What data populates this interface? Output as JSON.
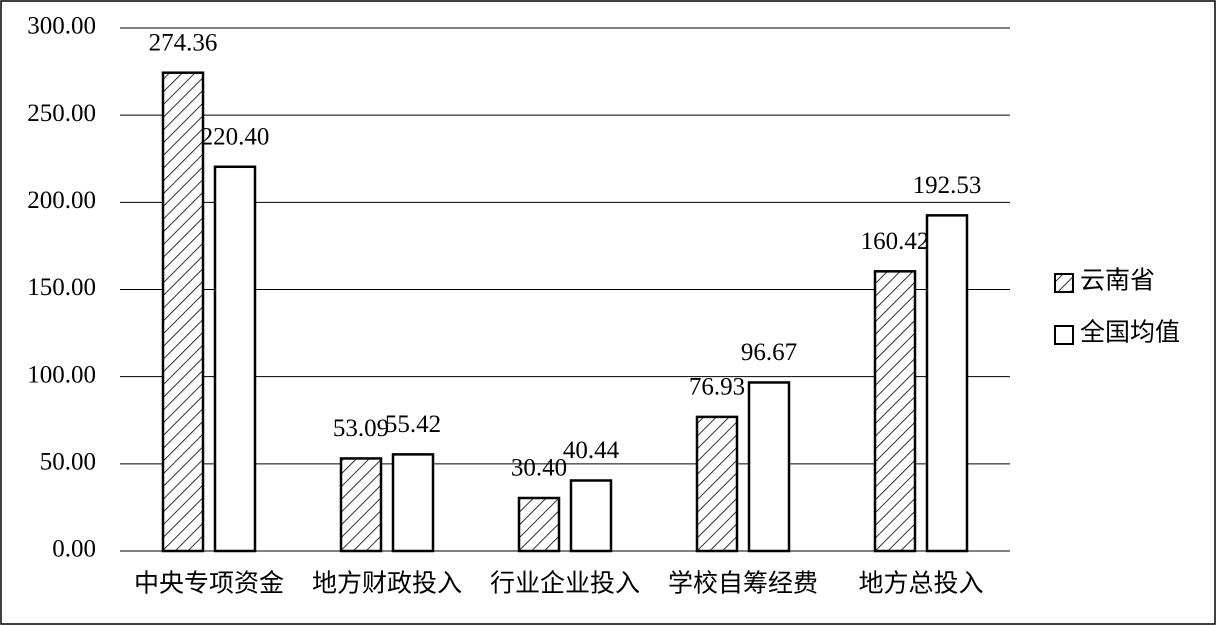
{
  "chart_data": {
    "type": "bar",
    "categories": [
      "中央专项资金",
      "地方财政投入",
      "行业企业投入",
      "学校自筹经费",
      "地方总投入"
    ],
    "series": [
      {
        "name": "云南省",
        "color": "#000000",
        "pattern": "diagonal",
        "values": [
          274.36,
          53.09,
          30.4,
          76.93,
          160.42
        ],
        "value_labels": [
          "274.36",
          "53.09",
          "30.40",
          "76.93",
          "160.42"
        ]
      },
      {
        "name": "全国均值",
        "color": "#000000",
        "pattern": "none",
        "values": [
          220.4,
          55.42,
          40.44,
          96.67,
          192.53
        ],
        "value_labels": [
          "220.40",
          "55.42",
          "40.44",
          "96.67",
          "192.53"
        ]
      }
    ],
    "ylim": [
      0,
      300
    ],
    "yticks": [
      {
        "value": 0,
        "label": "0.00"
      },
      {
        "value": 50,
        "label": "50.00"
      },
      {
        "value": 100,
        "label": "100.00"
      },
      {
        "value": 150,
        "label": "150.00"
      },
      {
        "value": 200,
        "label": "200.00"
      },
      {
        "value": 250,
        "label": "250.00"
      },
      {
        "value": 300,
        "label": "300.00"
      }
    ],
    "grid": true,
    "legend": "right"
  }
}
